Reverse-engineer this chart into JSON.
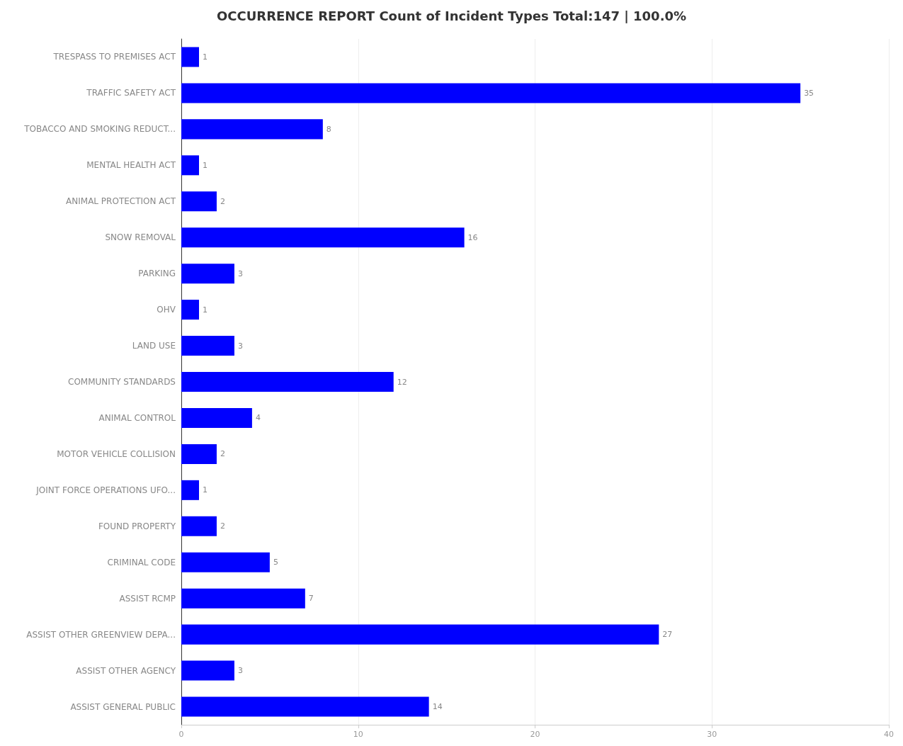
{
  "chart_data": {
    "type": "bar",
    "orientation": "horizontal",
    "title": "OCCURRENCE REPORT Count of Incident Types Total:147 | 100.0%",
    "categories": [
      "TRESPASS TO PREMISES ACT",
      "TRAFFIC SAFETY ACT",
      "TOBACCO AND SMOKING REDUCT...",
      "MENTAL HEALTH ACT",
      "ANIMAL PROTECTION ACT",
      "SNOW REMOVAL",
      "PARKING",
      "OHV",
      "LAND USE",
      "COMMUNITY STANDARDS",
      "ANIMAL CONTROL",
      "MOTOR VEHICLE COLLISION",
      "JOINT FORCE OPERATIONS UFO...",
      "FOUND PROPERTY",
      "CRIMINAL CODE",
      "ASSIST RCMP",
      "ASSIST OTHER GREENVIEW DEPA...",
      "ASSIST OTHER AGENCY",
      "ASSIST GENERAL PUBLIC"
    ],
    "values": [
      1,
      35,
      8,
      1,
      2,
      16,
      3,
      1,
      3,
      12,
      4,
      2,
      1,
      2,
      5,
      7,
      27,
      3,
      14
    ],
    "color": "#0000ff",
    "xlim": [
      0,
      40
    ],
    "xticks": [
      0,
      10,
      20,
      30,
      40
    ],
    "grid": "x",
    "data_labels": true
  }
}
